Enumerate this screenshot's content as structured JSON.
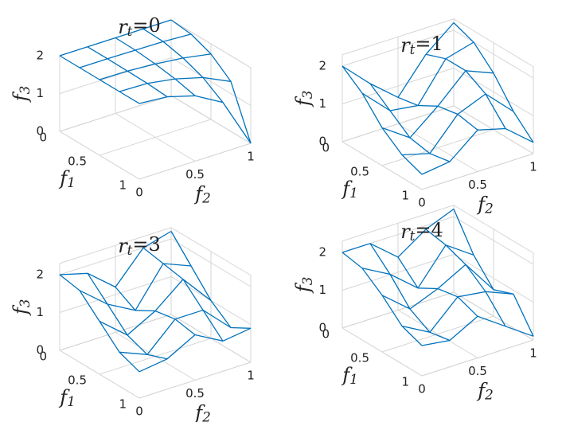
{
  "chart_data": [
    {
      "type": "surface3d",
      "title": "r_t=0",
      "xlabel": "f_1",
      "ylabel": "f_2",
      "zlabel": "f_3",
      "color": "#0072bd",
      "x": [
        0,
        0.25,
        0.5,
        0.75,
        1
      ],
      "y": [
        0,
        0.25,
        0.5,
        0.75,
        1
      ],
      "z": [
        [
          2,
          2,
          2,
          2,
          2
        ],
        [
          2,
          2,
          1.99,
          1.98,
          1.94
        ],
        [
          2,
          1.99,
          1.94,
          1.86,
          1.73
        ],
        [
          2,
          1.98,
          1.86,
          1.66,
          1.32
        ],
        [
          2,
          1.94,
          1.73,
          1.32,
          0
        ]
      ],
      "xlim": [
        0,
        1
      ],
      "ylim": [
        0,
        1
      ],
      "zlim": [
        0,
        2
      ],
      "xticks": [
        0,
        0.5,
        1
      ],
      "yticks": [
        0,
        0.5,
        1
      ],
      "zticks": [
        0,
        1,
        2
      ]
    },
    {
      "type": "surface3d",
      "title": "r_t=1",
      "xlabel": "f_1",
      "ylabel": "f_2",
      "zlabel": "f_3",
      "color": "#0072bd",
      "x": [
        0,
        0.25,
        0.5,
        0.75,
        1
      ],
      "y": [
        0,
        0.25,
        0.5,
        0.75,
        1
      ],
      "z": [
        [
          2,
          1.3,
          0.7,
          1.6,
          2.2
        ],
        [
          1.6,
          0.9,
          0.8,
          1.8,
          2.0
        ],
        [
          1.0,
          0.5,
          1.1,
          1.8,
          1.5
        ],
        [
          0.6,
          0.4,
          1.2,
          1.5,
          0.8
        ],
        [
          0.4,
          0.5,
          1.1,
          0.9,
          0.3
        ]
      ],
      "xlim": [
        0,
        1
      ],
      "ylim": [
        0,
        1
      ],
      "zlim": [
        0,
        2.3
      ],
      "xticks": [
        0,
        0.5,
        1
      ],
      "yticks": [
        0,
        0.5,
        1
      ],
      "zticks": [
        0,
        1,
        2
      ]
    },
    {
      "type": "surface3d",
      "title": "r_t=3",
      "xlabel": "f_1",
      "ylabel": "f_2",
      "zlabel": "f_3",
      "color": "#0072bd",
      "x": [
        0,
        0.25,
        0.5,
        0.75,
        1
      ],
      "y": [
        0,
        0.25,
        0.5,
        0.75,
        1
      ],
      "z": [
        [
          2,
          1.8,
          1.2,
          2.0,
          2.2
        ],
        [
          1.9,
          1.3,
          0.9,
          1.9,
          1.6
        ],
        [
          1.4,
          0.8,
          1.2,
          1.8,
          1.0
        ],
        [
          0.9,
          0.6,
          1.3,
          1.3,
          0.6
        ],
        [
          0.7,
          0.8,
          1.2,
          0.8,
          0.9
        ]
      ],
      "xlim": [
        0,
        1
      ],
      "ylim": [
        0,
        1
      ],
      "zlim": [
        0,
        2.3
      ],
      "xticks": [
        0,
        0.5,
        1
      ],
      "yticks": [
        0,
        0.5,
        1
      ],
      "zticks": [
        0,
        1,
        2
      ]
    },
    {
      "type": "surface3d",
      "title": "r_t=4",
      "xlabel": "f_1",
      "ylabel": "f_2",
      "zlabel": "f_3",
      "color": "#0072bd",
      "x": [
        0,
        0.25,
        0.5,
        0.75,
        1
      ],
      "y": [
        0,
        0.25,
        0.5,
        0.75,
        1
      ],
      "z": [
        [
          2,
          2.0,
          1.4,
          1.9,
          2.2
        ],
        [
          1.9,
          1.5,
          0.9,
          1.8,
          1.3
        ],
        [
          1.5,
          0.9,
          1.2,
          1.6,
          0.7
        ],
        [
          1.0,
          0.6,
          1.3,
          1.2,
          0.9
        ],
        [
          0.8,
          0.7,
          1.1,
          0.6,
          0.1
        ]
      ],
      "xlim": [
        0,
        1
      ],
      "ylim": [
        0,
        1
      ],
      "zlim": [
        0,
        2.3
      ],
      "xticks": [
        0,
        0.5,
        1
      ],
      "yticks": [
        0,
        0.5,
        1
      ],
      "zticks": [
        0,
        1,
        2
      ]
    }
  ]
}
